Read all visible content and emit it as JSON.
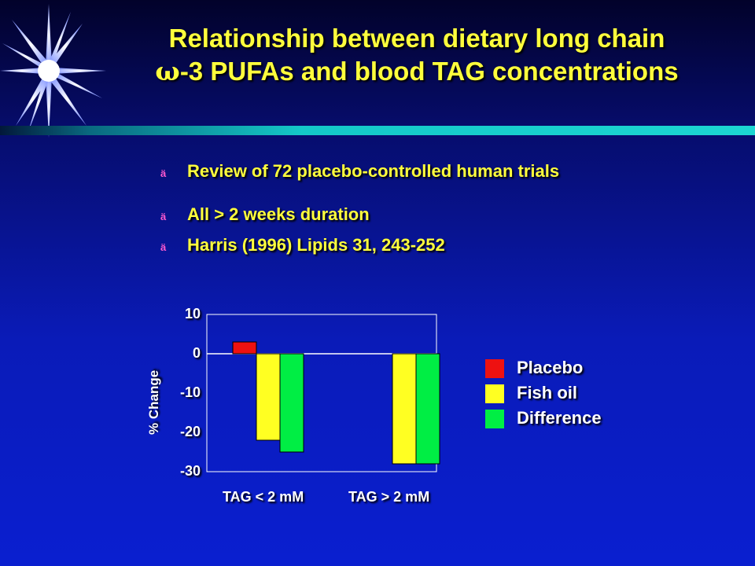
{
  "title": {
    "line1": "Relationship between dietary long chain",
    "line2_symbol": "ω",
    "line2_text": "-3 PUFAs and blood TAG concentrations"
  },
  "bullets": [
    {
      "mark": "ä",
      "text": "Review of 72 placebo-controlled human trials"
    },
    {
      "mark": "ä",
      "text": "All > 2 weeks duration"
    },
    {
      "mark": "ä",
      "text": "Harris (1996) Lipids 31, 243-252"
    }
  ],
  "colors": {
    "title": "#ffff3c",
    "placebo": "#ee1111",
    "fish_oil": "#ffff22",
    "difference": "#00ee44"
  },
  "chart_data": {
    "type": "bar",
    "categories": [
      "TAG < 2 mM",
      "TAG > 2 mM"
    ],
    "series": [
      {
        "name": "Placebo",
        "values": [
          3,
          0
        ]
      },
      {
        "name": "Fish oil",
        "values": [
          -22,
          -28
        ]
      },
      {
        "name": "Difference",
        "values": [
          -25,
          -28
        ]
      }
    ],
    "ylabel": "% Change",
    "ylim": [
      -30,
      10
    ],
    "yticks": [
      "10",
      "0",
      "-10",
      "-20",
      "-30"
    ],
    "legend": [
      "Placebo",
      "Fish oil",
      "Difference"
    ],
    "legend_position": "right"
  }
}
